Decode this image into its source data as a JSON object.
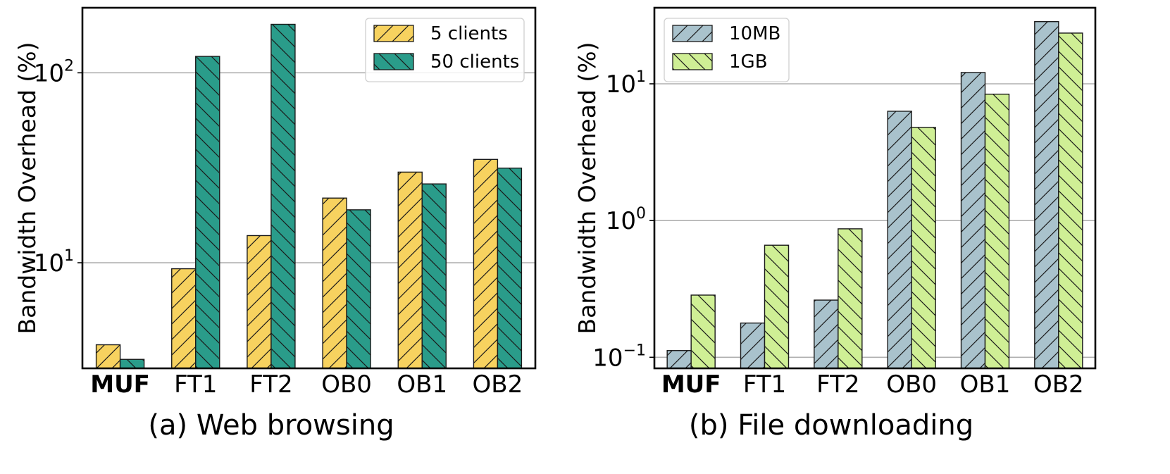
{
  "chart_data": [
    {
      "type": "bar",
      "caption": "(a) Web browsing",
      "ylabel": "Bandwidth Overhead (%)",
      "yscale": "log",
      "ylim": [
        2.78,
        220
      ],
      "yticks": [
        {
          "value": 10,
          "base": "10",
          "exp": "1"
        },
        {
          "value": 100,
          "base": "10",
          "exp": "2"
        }
      ],
      "categories": [
        "MUF",
        "FT1",
        "FT2",
        "OB0",
        "OB1",
        "OB2"
      ],
      "bold_category": "MUF",
      "legend_position": "top-right",
      "series": [
        {
          "name": "5 clients",
          "color": "#f7d25f",
          "hatch": "/",
          "values": [
            3.7,
            9.3,
            13.9,
            21.9,
            30.0,
            35.0
          ]
        },
        {
          "name": "50 clients",
          "color": "#2a9c8a",
          "hatch": "\\",
          "values": [
            3.1,
            122,
            180,
            19.0,
            26.0,
            31.5
          ]
        }
      ]
    },
    {
      "type": "bar",
      "caption": "(b) File downloading",
      "ylabel": "Bandwidth Overhead (%)",
      "yscale": "log",
      "ylim": [
        0.083,
        36
      ],
      "yticks": [
        {
          "value": 0.1,
          "base": "10",
          "exp": "−1"
        },
        {
          "value": 1,
          "base": "10",
          "exp": "0"
        },
        {
          "value": 10,
          "base": "10",
          "exp": "1"
        }
      ],
      "categories": [
        "MUF",
        "FT1",
        "FT2",
        "OB0",
        "OB1",
        "OB2"
      ],
      "bold_category": "MUF",
      "legend_position": "top-left",
      "series": [
        {
          "name": "10MB",
          "color": "#a9c2cc",
          "hatch": "/",
          "values": [
            0.112,
            0.178,
            0.262,
            6.3,
            12.1,
            28.5
          ]
        },
        {
          "name": "1GB",
          "color": "#cfef95",
          "hatch": "\\",
          "values": [
            0.285,
            0.66,
            0.87,
            4.8,
            8.4,
            23.5
          ]
        }
      ]
    }
  ]
}
